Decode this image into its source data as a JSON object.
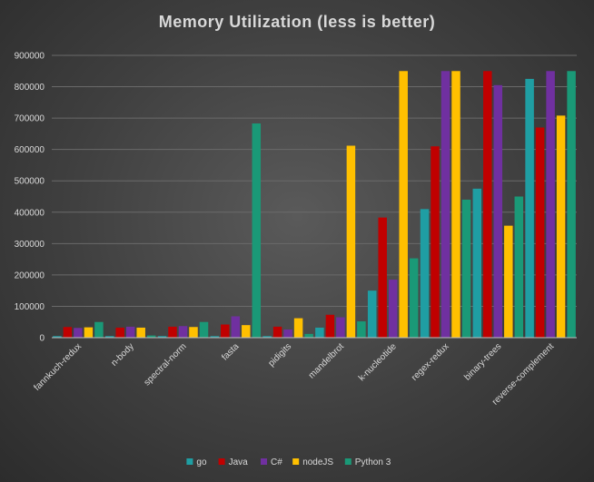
{
  "chart_data": {
    "type": "bar",
    "title": "Memory  Utilization  (less  is  better)",
    "xlabel": "",
    "ylabel": "",
    "ylim": [
      0,
      900000
    ],
    "yticks": [
      "0",
      "100000",
      "200000",
      "300000",
      "400000",
      "500000",
      "600000",
      "700000",
      "800000",
      "900000"
    ],
    "grid": true,
    "legend_position": "bottom",
    "categories": [
      "fannkuch-redux",
      "n-body",
      "spectral-norm",
      "fasta",
      "pidigits",
      "mandelbrot",
      "k-nucleotide",
      "regex-redux",
      "binary-trees",
      "reverse-complement"
    ],
    "series": [
      {
        "name": "go",
        "color": "#1f9ea3",
        "values": [
          5000,
          5000,
          5000,
          5000,
          5000,
          32000,
          150000,
          410000,
          475000,
          825000
        ]
      },
      {
        "name": "Java",
        "color": "#c00000",
        "values": [
          34000,
          32000,
          35000,
          42000,
          35000,
          73000,
          383000,
          610000,
          850000,
          670000
        ]
      },
      {
        "name": "C#",
        "color": "#7030a0",
        "values": [
          31000,
          35000,
          37000,
          68000,
          26000,
          65000,
          185000,
          850000,
          805000,
          850000
        ]
      },
      {
        "name": "nodeJS",
        "color": "#ffc000",
        "values": [
          33000,
          32000,
          34000,
          40000,
          62000,
          612000,
          850000,
          850000,
          357000,
          708000
        ]
      },
      {
        "name": "Python 3",
        "color": "#1a9977",
        "values": [
          50000,
          7000,
          50000,
          683000,
          12000,
          52000,
          253000,
          440000,
          450000,
          850000
        ]
      }
    ]
  }
}
